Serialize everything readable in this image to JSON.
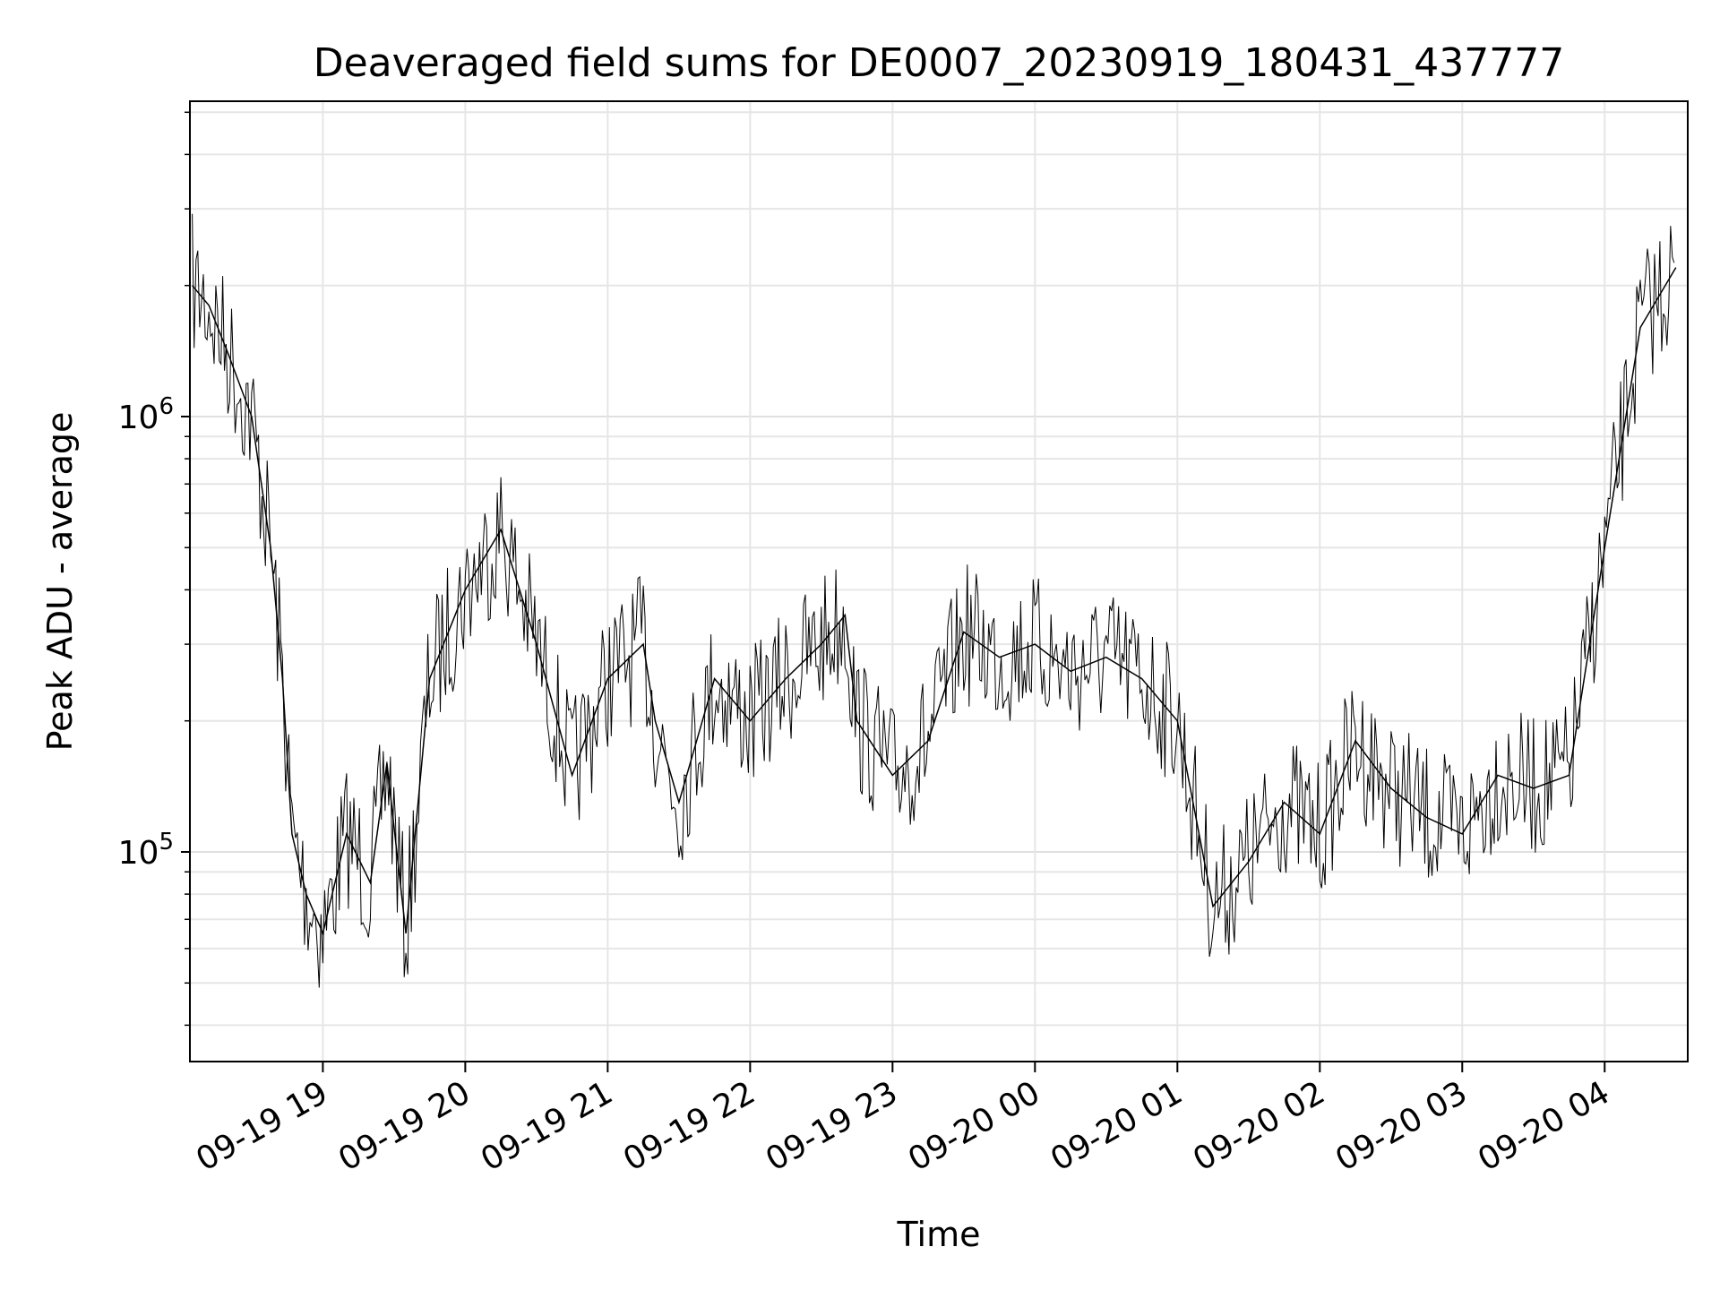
{
  "chart_data": {
    "type": "line",
    "title": "Deaveraged field sums for DE0007_20230919_180431_437777",
    "xlabel": "Time",
    "ylabel": "Peak ADU - average",
    "xscale": "time",
    "yscale": "log",
    "grid": true,
    "xlim": [
      "2023-09-19 18:04",
      "2023-09-20 04:35"
    ],
    "ylim": [
      33000,
      5300000
    ],
    "x_ticks": [
      "09-19 19",
      "09-19 20",
      "09-19 21",
      "09-19 22",
      "09-19 23",
      "09-20 00",
      "09-20 01",
      "09-20 02",
      "09-20 03",
      "09-20 04"
    ],
    "y_ticks": [
      {
        "value": 100000,
        "base": "10",
        "exp": "5"
      },
      {
        "value": 1000000,
        "base": "10",
        "exp": "6"
      }
    ],
    "line_color": "#000000",
    "series": [
      {
        "x": [
          "2023-09-19 18:05",
          "2023-09-19 18:12",
          "2023-09-19 18:20",
          "2023-09-19 18:30",
          "2023-09-19 18:38",
          "2023-09-19 18:43",
          "2023-09-19 18:47",
          "2023-09-19 18:53",
          "2023-09-19 19:00",
          "2023-09-19 19:10",
          "2023-09-19 19:20",
          "2023-09-19 19:27",
          "2023-09-19 19:35",
          "2023-09-19 19:45",
          "2023-09-19 20:00",
          "2023-09-19 20:15",
          "2023-09-19 20:30",
          "2023-09-19 20:45",
          "2023-09-19 21:00",
          "2023-09-19 21:15",
          "2023-09-19 21:20",
          "2023-09-19 21:30",
          "2023-09-19 21:45",
          "2023-09-19 22:00",
          "2023-09-19 22:15",
          "2023-09-19 22:30",
          "2023-09-19 22:40",
          "2023-09-19 22:45",
          "2023-09-19 23:00",
          "2023-09-19 23:15",
          "2023-09-19 23:30",
          "2023-09-19 23:45",
          "2023-09-20 00:00",
          "2023-09-20 00:15",
          "2023-09-20 00:30",
          "2023-09-20 00:45",
          "2023-09-20 01:00",
          "2023-09-20 01:15",
          "2023-09-20 01:30",
          "2023-09-20 01:45",
          "2023-09-20 02:00",
          "2023-09-20 02:15",
          "2023-09-20 02:30",
          "2023-09-20 02:45",
          "2023-09-20 03:00",
          "2023-09-20 03:15",
          "2023-09-20 03:30",
          "2023-09-20 03:45",
          "2023-09-20 04:00",
          "2023-09-20 04:15",
          "2023-09-20 04:30"
        ],
        "y": [
          2000000,
          1800000,
          1400000,
          1000000,
          500000,
          250000,
          110000,
          80000,
          65000,
          110000,
          85000,
          160000,
          65000,
          250000,
          400000,
          550000,
          300000,
          150000,
          250000,
          300000,
          200000,
          130000,
          250000,
          200000,
          250000,
          300000,
          350000,
          200000,
          150000,
          180000,
          320000,
          280000,
          300000,
          260000,
          280000,
          250000,
          200000,
          75000,
          95000,
          130000,
          110000,
          180000,
          140000,
          120000,
          110000,
          150000,
          140000,
          150000,
          500000,
          1600000,
          2200000
        ]
      }
    ]
  }
}
